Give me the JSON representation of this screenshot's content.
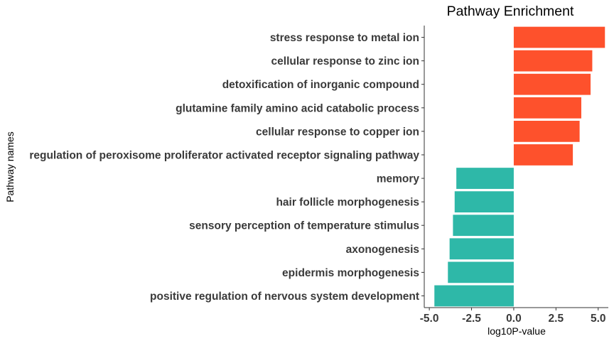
{
  "chart_data": {
    "type": "bar",
    "orientation": "horizontal",
    "title": "Pathway Enrichment",
    "xlabel": "log10P-value",
    "ylabel": "Pathway names",
    "xlim": [
      -5.3,
      5.6
    ],
    "xticks": [
      -5.0,
      -2.5,
      0.0,
      2.5,
      5.0
    ],
    "xtick_labels": [
      "-5.0",
      "-2.5",
      "0.0",
      "2.5",
      "5.0"
    ],
    "grid": false,
    "legend": "none",
    "categories": [
      "stress response to metal ion",
      "cellular response to zinc ion",
      "detoxification of inorganic compound",
      "glutamine family amino acid catabolic process",
      "cellular response to copper ion",
      "regulation of peroxisome proliferator activated receptor signaling pathway",
      "memory",
      "hair follicle morphogenesis",
      "sensory perception of temperature stimulus",
      "axonogenesis",
      "epidermis morphogenesis",
      "positive regulation of nervous system development"
    ],
    "values": [
      5.4,
      4.65,
      4.55,
      4.0,
      3.9,
      3.5,
      -3.4,
      -3.5,
      -3.6,
      -3.8,
      -3.9,
      -4.7
    ],
    "colors": {
      "positive": "#fe512c",
      "negative": "#2eb8a8",
      "axis": "#333333"
    }
  }
}
